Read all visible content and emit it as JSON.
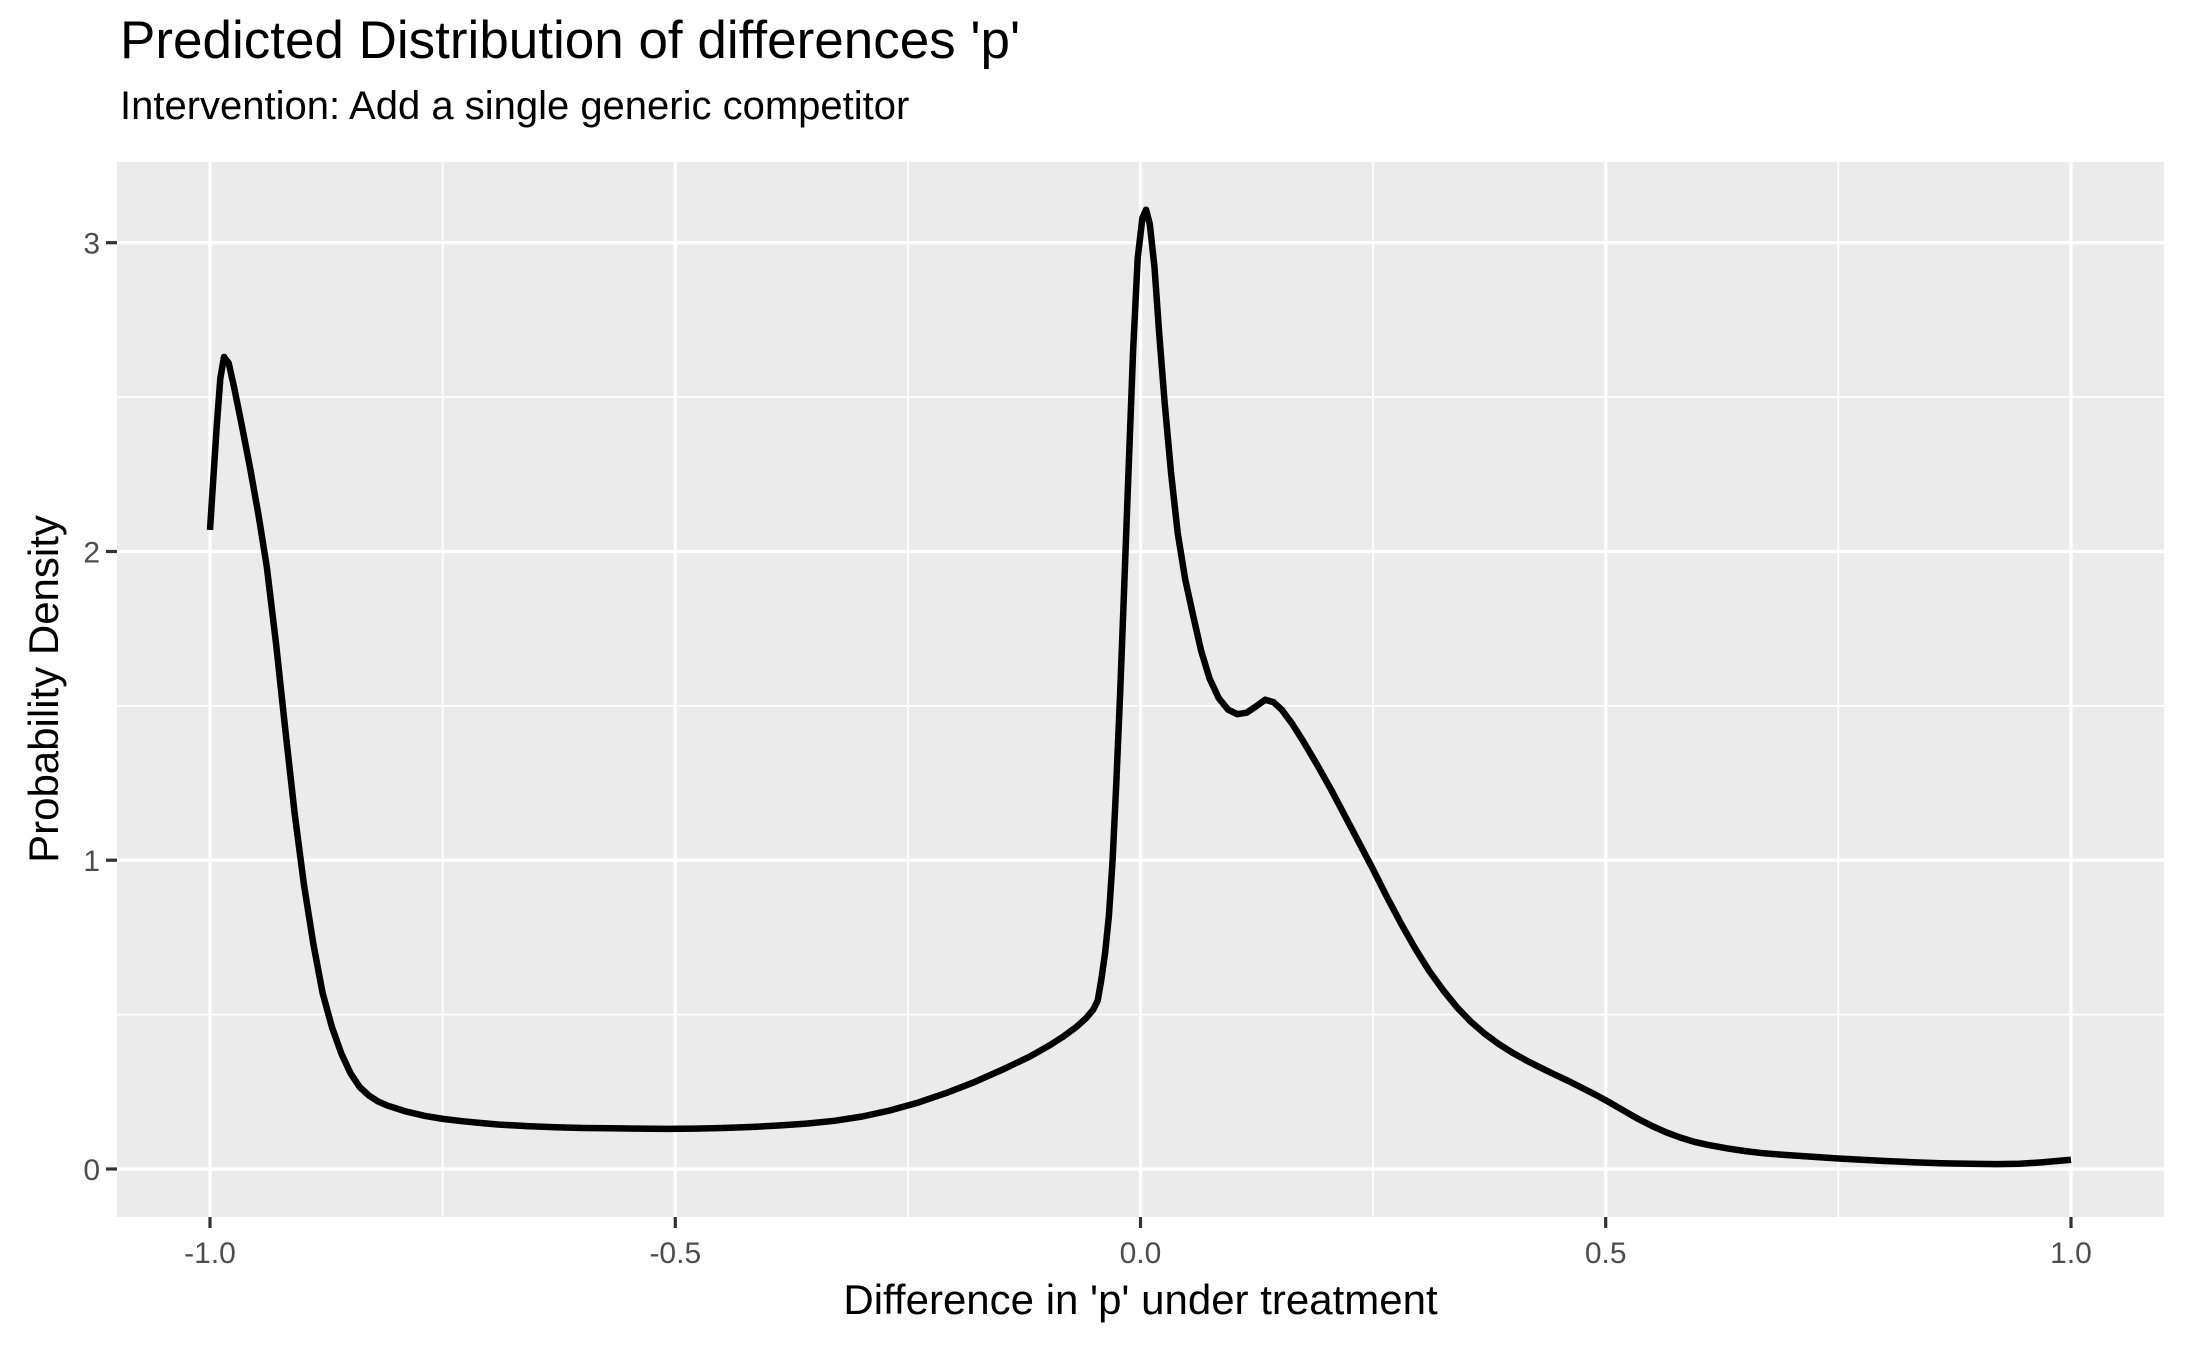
{
  "chart_data": {
    "type": "line",
    "subtype": "density",
    "title": "Predicted Distribution of differences 'p'",
    "subtitle": "Intervention: Add a single generic competitor",
    "xlabel": "Difference in 'p' under treatment",
    "ylabel": "Probability Density",
    "xlim": [
      -1.1,
      1.1
    ],
    "ylim": [
      -0.1554,
      3.2614
    ],
    "x_ticks": {
      "values": [
        -1.0,
        -0.5,
        0.0,
        0.5,
        1.0
      ],
      "labels": [
        "-1.0",
        "-0.5",
        "0.0",
        "0.5",
        "1.0"
      ]
    },
    "y_ticks": {
      "values": [
        0,
        1,
        2,
        3
      ],
      "labels": [
        "0",
        "1",
        "2",
        "3"
      ]
    },
    "x_minor_ticks": [
      -0.75,
      -0.25,
      0.25,
      0.75
    ],
    "y_minor_ticks": [
      0.5,
      1.5,
      2.5
    ],
    "grid": true,
    "legend_position": "none",
    "style": {
      "panel_bg": "#EBEBEB",
      "grid_color": "#FFFFFF",
      "major_grid_width": 3.3,
      "minor_grid_width": 1.7,
      "line_color": "#000000",
      "line_width": 6.5,
      "tick_color": "#333333",
      "tick_label_color": "#4D4D4D",
      "title_color": "#000000"
    },
    "series": [
      {
        "name": "density",
        "points": [
          [
            -1.0,
            2.07
          ],
          [
            -0.997,
            2.21
          ],
          [
            -0.993,
            2.4
          ],
          [
            -0.989,
            2.56
          ],
          [
            -0.985,
            2.63
          ],
          [
            -0.98,
            2.61
          ],
          [
            -0.974,
            2.53
          ],
          [
            -0.966,
            2.41
          ],
          [
            -0.957,
            2.27
          ],
          [
            -0.948,
            2.12
          ],
          [
            -0.939,
            1.95
          ],
          [
            -0.929,
            1.7
          ],
          [
            -0.919,
            1.42
          ],
          [
            -0.909,
            1.15
          ],
          [
            -0.899,
            0.92
          ],
          [
            -0.889,
            0.73
          ],
          [
            -0.879,
            0.57
          ],
          [
            -0.869,
            0.46
          ],
          [
            -0.859,
            0.375
          ],
          [
            -0.849,
            0.31
          ],
          [
            -0.839,
            0.265
          ],
          [
            -0.829,
            0.237
          ],
          [
            -0.819,
            0.218
          ],
          [
            -0.809,
            0.205
          ],
          [
            -0.789,
            0.186
          ],
          [
            -0.769,
            0.172
          ],
          [
            -0.749,
            0.162
          ],
          [
            -0.729,
            0.155
          ],
          [
            -0.709,
            0.149
          ],
          [
            -0.689,
            0.144
          ],
          [
            -0.659,
            0.139
          ],
          [
            -0.629,
            0.135
          ],
          [
            -0.599,
            0.133
          ],
          [
            -0.569,
            0.132
          ],
          [
            -0.539,
            0.131
          ],
          [
            -0.509,
            0.13
          ],
          [
            -0.479,
            0.131
          ],
          [
            -0.449,
            0.133
          ],
          [
            -0.419,
            0.136
          ],
          [
            -0.389,
            0.141
          ],
          [
            -0.359,
            0.147
          ],
          [
            -0.329,
            0.156
          ],
          [
            -0.299,
            0.17
          ],
          [
            -0.269,
            0.19
          ],
          [
            -0.239,
            0.215
          ],
          [
            -0.209,
            0.246
          ],
          [
            -0.179,
            0.281
          ],
          [
            -0.149,
            0.321
          ],
          [
            -0.119,
            0.364
          ],
          [
            -0.099,
            0.398
          ],
          [
            -0.084,
            0.427
          ],
          [
            -0.069,
            0.46
          ],
          [
            -0.059,
            0.487
          ],
          [
            -0.051,
            0.515
          ],
          [
            -0.046,
            0.545
          ],
          [
            -0.042,
            0.615
          ],
          [
            -0.038,
            0.7
          ],
          [
            -0.034,
            0.82
          ],
          [
            -0.03,
            1.0
          ],
          [
            -0.026,
            1.25
          ],
          [
            -0.022,
            1.53
          ],
          [
            -0.018,
            1.85
          ],
          [
            -0.013,
            2.25
          ],
          [
            -0.008,
            2.65
          ],
          [
            -0.003,
            2.95
          ],
          [
            0.002,
            3.08
          ],
          [
            0.006,
            3.107
          ],
          [
            0.01,
            3.06
          ],
          [
            0.015,
            2.92
          ],
          [
            0.02,
            2.71
          ],
          [
            0.026,
            2.48
          ],
          [
            0.033,
            2.25
          ],
          [
            0.04,
            2.06
          ],
          [
            0.048,
            1.91
          ],
          [
            0.056,
            1.8
          ],
          [
            0.065,
            1.68
          ],
          [
            0.074,
            1.59
          ],
          [
            0.084,
            1.525
          ],
          [
            0.094,
            1.488
          ],
          [
            0.104,
            1.473
          ],
          [
            0.114,
            1.478
          ],
          [
            0.124,
            1.498
          ],
          [
            0.134,
            1.52
          ],
          [
            0.143,
            1.512
          ],
          [
            0.152,
            1.487
          ],
          [
            0.163,
            1.442
          ],
          [
            0.175,
            1.385
          ],
          [
            0.19,
            1.308
          ],
          [
            0.205,
            1.228
          ],
          [
            0.22,
            1.142
          ],
          [
            0.235,
            1.056
          ],
          [
            0.25,
            0.97
          ],
          [
            0.265,
            0.88
          ],
          [
            0.28,
            0.795
          ],
          [
            0.295,
            0.715
          ],
          [
            0.31,
            0.643
          ],
          [
            0.325,
            0.58
          ],
          [
            0.34,
            0.524
          ],
          [
            0.355,
            0.477
          ],
          [
            0.37,
            0.438
          ],
          [
            0.385,
            0.405
          ],
          [
            0.4,
            0.376
          ],
          [
            0.415,
            0.351
          ],
          [
            0.43,
            0.328
          ],
          [
            0.445,
            0.306
          ],
          [
            0.46,
            0.285
          ],
          [
            0.475,
            0.262
          ],
          [
            0.49,
            0.239
          ],
          [
            0.505,
            0.214
          ],
          [
            0.52,
            0.188
          ],
          [
            0.535,
            0.162
          ],
          [
            0.55,
            0.139
          ],
          [
            0.565,
            0.119
          ],
          [
            0.58,
            0.102
          ],
          [
            0.595,
            0.088
          ],
          [
            0.61,
            0.078
          ],
          [
            0.63,
            0.067
          ],
          [
            0.65,
            0.058
          ],
          [
            0.67,
            0.051
          ],
          [
            0.69,
            0.046
          ],
          [
            0.71,
            0.042
          ],
          [
            0.73,
            0.038
          ],
          [
            0.75,
            0.034
          ],
          [
            0.775,
            0.03
          ],
          [
            0.8,
            0.026
          ],
          [
            0.83,
            0.022
          ],
          [
            0.86,
            0.019
          ],
          [
            0.89,
            0.017
          ],
          [
            0.92,
            0.016
          ],
          [
            0.945,
            0.017
          ],
          [
            0.97,
            0.022
          ],
          [
            1.0,
            0.03
          ]
        ]
      }
    ]
  }
}
